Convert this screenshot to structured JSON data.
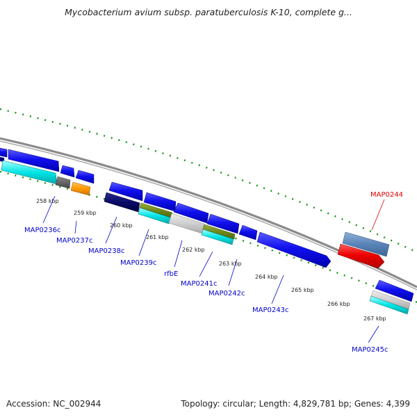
{
  "title": "Mycobacterium avium subsp. paratuberculosis K-10, complete g...",
  "footer": {
    "accession": "Accession: NC_002944",
    "summary": "Topology: circular; Length: 4,829,781 bp; Genes: 4,399"
  },
  "kbp_labels": [
    "258 kbp",
    "259 kbp",
    "260 kbp",
    "261 kbp",
    "262 kbp",
    "263 kbp",
    "264 kbp",
    "265 kbp",
    "266 kbp",
    "267 kbp"
  ],
  "genes": [
    {
      "name": "MAP0236c",
      "color": "#0000cc"
    },
    {
      "name": "MAP0237c",
      "color": "#0000cc"
    },
    {
      "name": "MAP0238c",
      "color": "#0000cc"
    },
    {
      "name": "MAP0239c",
      "color": "#0000cc"
    },
    {
      "name": "rfbE",
      "color": "#0000cc"
    },
    {
      "name": "MAP0241c",
      "color": "#0000cc"
    },
    {
      "name": "MAP0242c",
      "color": "#0000cc"
    },
    {
      "name": "MAP0243c",
      "color": "#0000cc"
    },
    {
      "name": "MAP0244",
      "color": "#e00000"
    },
    {
      "name": "MAP0245c",
      "color": "#0000cc"
    }
  ],
  "colors": {
    "backbone": "#7a7a7a",
    "cds": "#1a1aee",
    "cds_highlight": "#ee0000",
    "rna": "#00e0e0",
    "gc_skew": "#5577aa",
    "tick": "#1a9a1a"
  }
}
